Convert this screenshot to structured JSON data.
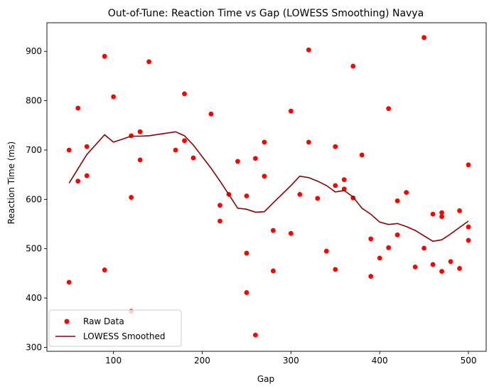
{
  "chart_data": {
    "type": "scatter",
    "title": "Out-of-Tune: Reaction Time vs Gap (LOWESS Smoothing) Navya",
    "xlabel": "Gap",
    "ylabel": "Reaction Time (ms)",
    "xlim": [
      25,
      520
    ],
    "ylim": [
      292,
      958
    ],
    "xticks": [
      100,
      200,
      300,
      400,
      500
    ],
    "yticks": [
      300,
      400,
      500,
      600,
      700,
      800,
      900
    ],
    "grid": false,
    "legend_position": "lower-left",
    "series": [
      {
        "name": "Raw Data",
        "kind": "scatter",
        "color": "#ff0000",
        "points": [
          [
            50,
            700
          ],
          [
            50,
            432
          ],
          [
            60,
            785
          ],
          [
            60,
            637
          ],
          [
            70,
            707
          ],
          [
            70,
            648
          ],
          [
            90,
            890
          ],
          [
            90,
            457
          ],
          [
            100,
            808
          ],
          [
            120,
            729
          ],
          [
            120,
            604
          ],
          [
            120,
            373
          ],
          [
            130,
            737
          ],
          [
            130,
            680
          ],
          [
            140,
            879
          ],
          [
            170,
            700
          ],
          [
            180,
            814
          ],
          [
            180,
            719
          ],
          [
            190,
            684
          ],
          [
            210,
            773
          ],
          [
            220,
            588
          ],
          [
            220,
            556
          ],
          [
            230,
            610
          ],
          [
            240,
            677
          ],
          [
            250,
            607
          ],
          [
            250,
            491
          ],
          [
            250,
            411
          ],
          [
            260,
            683
          ],
          [
            260,
            325
          ],
          [
            270,
            716
          ],
          [
            270,
            647
          ],
          [
            280,
            537
          ],
          [
            280,
            455
          ],
          [
            300,
            779
          ],
          [
            300,
            531
          ],
          [
            310,
            610
          ],
          [
            320,
            903
          ],
          [
            320,
            716
          ],
          [
            330,
            602
          ],
          [
            340,
            495
          ],
          [
            350,
            707
          ],
          [
            350,
            628
          ],
          [
            350,
            458
          ],
          [
            360,
            640
          ],
          [
            360,
            621
          ],
          [
            370,
            870
          ],
          [
            370,
            603
          ],
          [
            380,
            690
          ],
          [
            390,
            520
          ],
          [
            390,
            444
          ],
          [
            400,
            481
          ],
          [
            410,
            784
          ],
          [
            410,
            502
          ],
          [
            420,
            597
          ],
          [
            420,
            528
          ],
          [
            430,
            614
          ],
          [
            440,
            463
          ],
          [
            450,
            928
          ],
          [
            450,
            501
          ],
          [
            460,
            570
          ],
          [
            460,
            468
          ],
          [
            470,
            573
          ],
          [
            470,
            565
          ],
          [
            470,
            454
          ],
          [
            480,
            474
          ],
          [
            490,
            577
          ],
          [
            490,
            460
          ],
          [
            500,
            670
          ],
          [
            500,
            544
          ],
          [
            500,
            517
          ]
        ]
      },
      {
        "name": "LOWESS Smoothed",
        "kind": "line",
        "color": "#8b0000",
        "points": [
          [
            50,
            633
          ],
          [
            60,
            662
          ],
          [
            70,
            691
          ],
          [
            90,
            731
          ],
          [
            100,
            716
          ],
          [
            120,
            728
          ],
          [
            130,
            728
          ],
          [
            140,
            729
          ],
          [
            170,
            737
          ],
          [
            180,
            729
          ],
          [
            190,
            710
          ],
          [
            210,
            663
          ],
          [
            220,
            637
          ],
          [
            230,
            610
          ],
          [
            240,
            582
          ],
          [
            250,
            580
          ],
          [
            260,
            574
          ],
          [
            270,
            575
          ],
          [
            280,
            593
          ],
          [
            300,
            628
          ],
          [
            310,
            647
          ],
          [
            320,
            644
          ],
          [
            330,
            637
          ],
          [
            340,
            628
          ],
          [
            350,
            615
          ],
          [
            360,
            618
          ],
          [
            370,
            605
          ],
          [
            380,
            582
          ],
          [
            390,
            570
          ],
          [
            400,
            554
          ],
          [
            410,
            549
          ],
          [
            420,
            551
          ],
          [
            430,
            545
          ],
          [
            440,
            537
          ],
          [
            450,
            526
          ],
          [
            460,
            515
          ],
          [
            470,
            518
          ],
          [
            480,
            530
          ],
          [
            490,
            543
          ],
          [
            500,
            556
          ]
        ]
      }
    ]
  }
}
